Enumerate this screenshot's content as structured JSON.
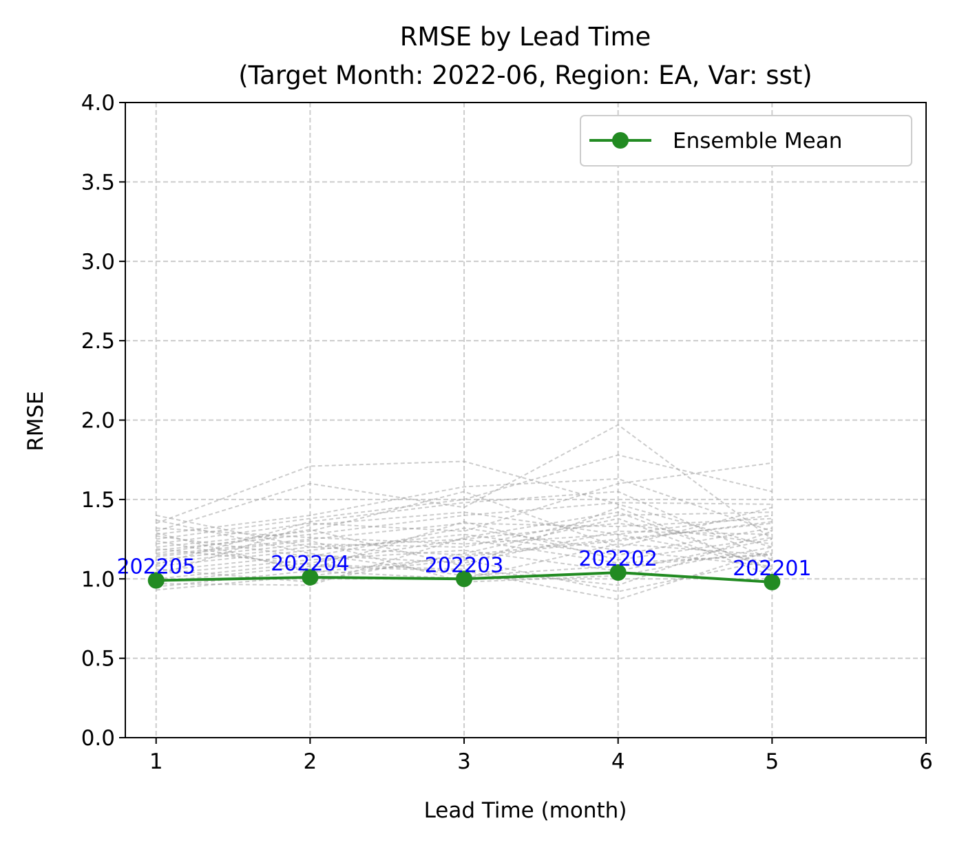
{
  "chart_data": {
    "type": "line",
    "title_line1": "RMSE by Lead Time",
    "title_line2": "(Target Month: 2022-06, Region: EA, Var: sst)",
    "xlabel": "Lead Time (month)",
    "ylabel": "RMSE",
    "xlim": [
      0.8,
      6
    ],
    "ylim": [
      0,
      4
    ],
    "xticks": [
      1,
      2,
      3,
      4,
      5,
      6
    ],
    "xtick_labels": [
      "1",
      "2",
      "3",
      "4",
      "5",
      "6"
    ],
    "yticks": [
      0,
      0.5,
      1,
      1.5,
      2,
      2.5,
      3,
      3.5,
      4
    ],
    "ytick_labels": [
      "0.0",
      "0.5",
      "1.0",
      "1.5",
      "2.0",
      "2.5",
      "3.0",
      "3.5",
      "4.0"
    ],
    "grid": true,
    "legend_position": "top-right",
    "colors": {
      "ensemble_mean": "#228B22",
      "members": "#999999",
      "labels": "#0000ff"
    },
    "ensemble_mean": {
      "name": "Ensemble Mean",
      "x": [
        1,
        2,
        3,
        4,
        5
      ],
      "y": [
        0.99,
        1.01,
        1.0,
        1.04,
        0.98
      ],
      "labels": [
        "202205",
        "202204",
        "202203",
        "202202",
        "202201"
      ]
    },
    "members": [
      [
        1.4,
        1.2,
        1.25,
        1.1,
        1.15
      ],
      [
        1.35,
        1.71,
        1.74,
        1.47,
        1.2
      ],
      [
        1.3,
        1.6,
        1.45,
        1.97,
        1.25
      ],
      [
        1.28,
        1.4,
        1.58,
        1.63,
        1.3
      ],
      [
        1.25,
        1.38,
        1.5,
        1.78,
        1.55
      ],
      [
        1.22,
        1.35,
        1.3,
        1.6,
        1.73
      ],
      [
        1.2,
        1.3,
        1.55,
        1.2,
        1.45
      ],
      [
        1.18,
        1.28,
        1.4,
        1.48,
        1.47
      ],
      [
        1.15,
        1.25,
        1.35,
        1.33,
        1.38
      ],
      [
        1.12,
        1.22,
        1.2,
        1.4,
        1.42
      ],
      [
        1.1,
        1.2,
        1.15,
        1.25,
        1.35
      ],
      [
        1.08,
        1.18,
        1.28,
        1.15,
        1.32
      ],
      [
        1.05,
        1.15,
        1.1,
        1.3,
        1.28
      ],
      [
        1.03,
        1.12,
        1.18,
        1.05,
        1.25
      ],
      [
        1.0,
        1.1,
        1.25,
        1.35,
        1.22
      ],
      [
        0.98,
        1.08,
        1.05,
        0.87,
        1.18
      ],
      [
        0.95,
        1.05,
        1.0,
        1.22,
        1.15
      ],
      [
        0.93,
        1.02,
        1.12,
        0.92,
        1.12
      ],
      [
        1.32,
        1.26,
        1.22,
        1.28,
        1.1
      ],
      [
        1.27,
        1.14,
        1.32,
        1.18,
        1.08
      ],
      [
        1.16,
        1.31,
        1.08,
        1.45,
        1.05
      ],
      [
        1.06,
        0.98,
        1.16,
        1.38,
        1.02
      ],
      [
        1.24,
        1.06,
        1.36,
        1.12,
        1.26
      ],
      [
        1.14,
        1.24,
        0.98,
        1.02,
        1.2
      ],
      [
        1.02,
        1.34,
        1.42,
        1.28,
        1.4
      ],
      [
        1.37,
        1.16,
        1.02,
        1.08,
        1.16
      ],
      [
        0.97,
        0.96,
        1.26,
        1.42,
        1.06
      ],
      [
        1.19,
        1.09,
        1.06,
        0.96,
        1.3
      ],
      [
        1.09,
        1.36,
        1.48,
        1.55,
        1.12
      ],
      [
        1.29,
        1.04,
        1.14,
        1.24,
        1.36
      ]
    ]
  }
}
